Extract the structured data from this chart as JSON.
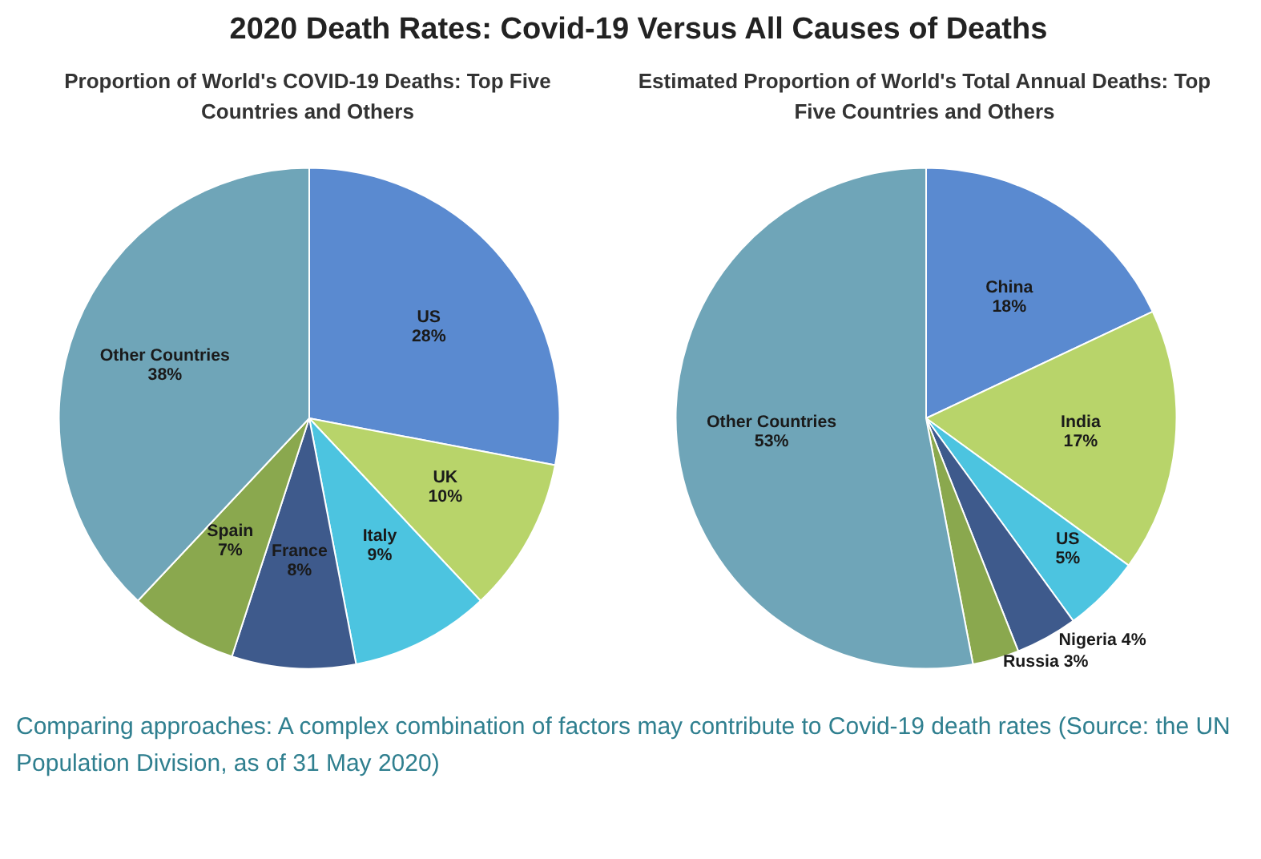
{
  "chart_data": [
    {
      "type": "pie",
      "title": "2020 Death Rates: Covid-19 Versus All Causes of Deaths",
      "subtitle": "Proportion of World's COVID-19 Deaths: Top Five Countries and Others",
      "categories": [
        "US",
        "UK",
        "Italy",
        "France",
        "Spain",
        "Other Countries"
      ],
      "values": [
        28,
        10,
        9,
        8,
        7,
        38
      ],
      "value_labels": [
        "28%",
        "10%",
        "9%",
        "8%",
        "7%",
        "38%"
      ],
      "colors": [
        "#5a8ad0",
        "#b8d46a",
        "#4cc4e0",
        "#3e5a8c",
        "#8aa84e",
        "#6fa5b8"
      ],
      "legend": false
    },
    {
      "type": "pie",
      "subtitle": "Estimated Proportion of World's Total Annual Deaths: Top Five Countries and Others",
      "categories": [
        "China",
        "India",
        "US",
        "Nigeria",
        "Russia",
        "Other Countries"
      ],
      "values": [
        18,
        17,
        5,
        4,
        3,
        53
      ],
      "value_labels": [
        "18%",
        "17%",
        "5%",
        "4%",
        "3%",
        "53%"
      ],
      "colors": [
        "#5a8ad0",
        "#b8d46a",
        "#4cc4e0",
        "#3e5a8c",
        "#8aa84e",
        "#6fa5b8"
      ],
      "legend": false,
      "annotations": [
        "Comparing approaches: A complex combination of factors may contribute to Covid-19 death rates (Source: the UN Population Division, as of 31 May 2020)"
      ]
    }
  ]
}
